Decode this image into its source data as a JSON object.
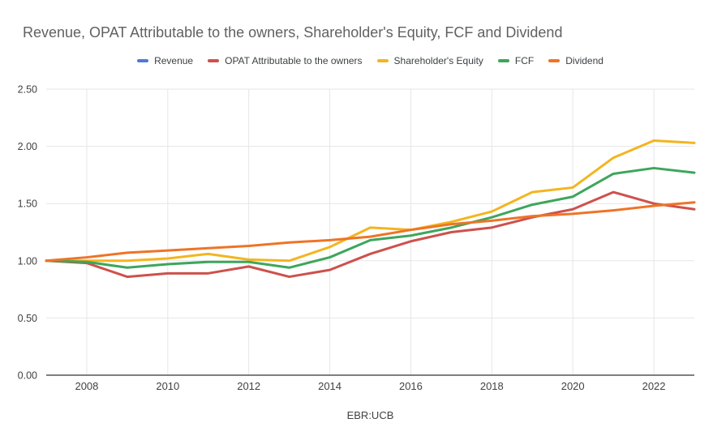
{
  "chart_data": {
    "type": "line",
    "title": "Revenue, OPAT Attributable to the owners, Shareholder's Equity, FCF and Dividend",
    "xlabel": "EBR:UCB",
    "ylabel": "",
    "x": [
      2007,
      2008,
      2009,
      2010,
      2011,
      2012,
      2013,
      2014,
      2015,
      2016,
      2017,
      2018,
      2019,
      2020,
      2021,
      2022,
      2023
    ],
    "x_tick_labels": [
      "2008",
      "2010",
      "2012",
      "2014",
      "2016",
      "2018",
      "2020",
      "2022"
    ],
    "y_tick_labels": [
      "0.00",
      "0.50",
      "1.00",
      "1.50",
      "2.00",
      "2.50"
    ],
    "xlim": [
      2007,
      2023
    ],
    "ylim": [
      0,
      2.5
    ],
    "grid": true,
    "legend_position": "top",
    "series": [
      {
        "name": "Revenue",
        "color": "#4e79d6",
        "visible": false,
        "note": "legend entry only - line not visible in plot (hidden behind other series)",
        "values": null
      },
      {
        "name": "OPAT Attributable to the owners",
        "color": "#cd514c",
        "visible": true,
        "values": [
          1.0,
          0.98,
          0.86,
          0.89,
          0.89,
          0.95,
          0.86,
          0.92,
          1.06,
          1.17,
          1.25,
          1.29,
          1.38,
          1.45,
          1.6,
          1.5,
          1.45
        ]
      },
      {
        "name": "Shareholder's Equity",
        "color": "#f3b51f",
        "visible": true,
        "values": [
          1.0,
          1.0,
          1.0,
          1.02,
          1.06,
          1.01,
          1.0,
          1.12,
          1.29,
          1.27,
          1.34,
          1.43,
          1.6,
          1.64,
          1.9,
          2.05,
          2.03
        ]
      },
      {
        "name": "FCF",
        "color": "#3da65c",
        "visible": true,
        "values": [
          1.0,
          0.99,
          0.94,
          0.97,
          0.99,
          0.99,
          0.94,
          1.03,
          1.18,
          1.22,
          1.29,
          1.38,
          1.49,
          1.56,
          1.76,
          1.81,
          1.77
        ]
      },
      {
        "name": "Dividend",
        "color": "#ee7426",
        "visible": true,
        "values": [
          1.0,
          1.03,
          1.07,
          1.09,
          1.11,
          1.13,
          1.16,
          1.18,
          1.21,
          1.27,
          1.32,
          1.35,
          1.39,
          1.41,
          1.44,
          1.48,
          1.51
        ]
      }
    ],
    "style_colors": {
      "title_text": "#616161",
      "axis_text": "#424242",
      "legend_text": "#3c4043",
      "gridline": "#e6e6e6",
      "axis_baseline": "#333333",
      "background": "#ffffff"
    }
  }
}
